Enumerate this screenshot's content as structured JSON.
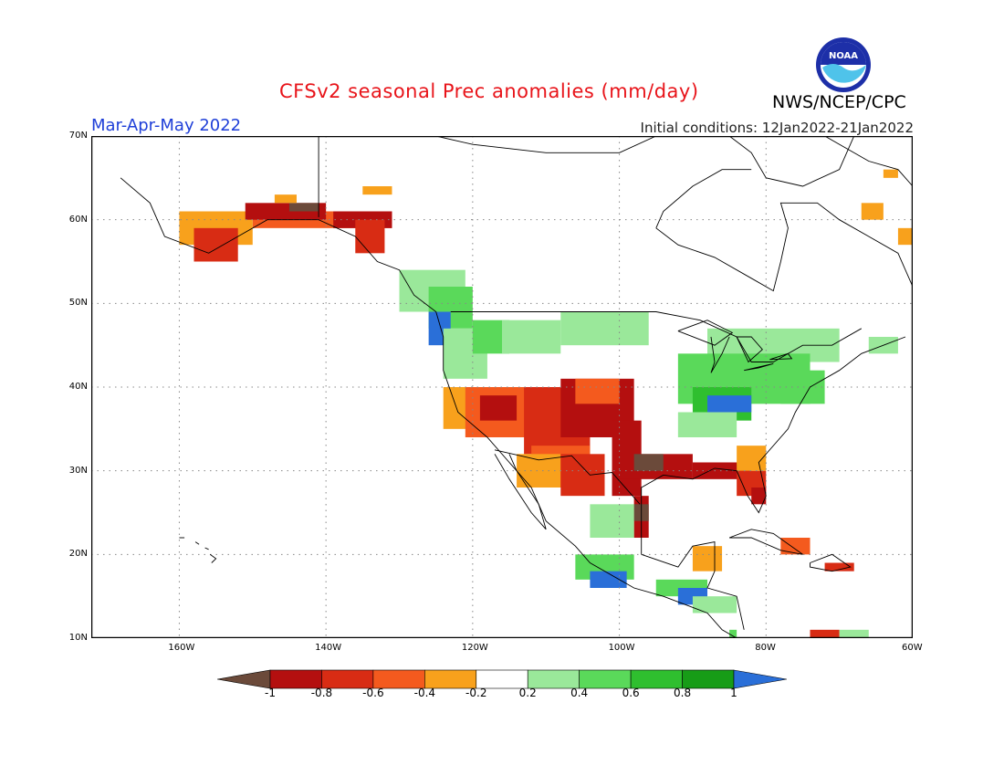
{
  "header": {
    "title": "CFSv2 seasonal Prec anomalies (mm/day)",
    "agency": "NWS/NCEP/CPC",
    "logo_text": "NOAA",
    "period": "Mar-Apr-May 2022",
    "initial_conditions": "Initial conditions: 12Jan2022-21Jan2022"
  },
  "colors": {
    "title": "#e8141a",
    "period": "#1f3fd8",
    "dry_extreme": "#6b4a3a",
    "dry_high": "#b40f0f",
    "dry_mid_high": "#d82c14",
    "dry_mid": "#f45a1e",
    "dry_low": "#f8a11c",
    "neutral": "#ffffff",
    "wet_low": "#9ae89a",
    "wet_mid": "#5ad95a",
    "wet_mid_high": "#2fbf2f",
    "wet_high": "#179c17",
    "wet_extreme": "#2a6fd8"
  },
  "map": {
    "lat_labels": [
      "70N",
      "60N",
      "50N",
      "40N",
      "30N",
      "20N",
      "10N"
    ],
    "lon_labels": [
      "160W",
      "140W",
      "120W",
      "100W",
      "80W",
      "60W"
    ],
    "lat_range": [
      10,
      70
    ],
    "lon_range": [
      -172,
      -60
    ]
  },
  "colorbar": {
    "labels": [
      "-1",
      "-0.8",
      "-0.6",
      "-0.4",
      "-0.2",
      "0.2",
      "0.4",
      "0.6",
      "0.8",
      "1"
    ],
    "bin_colors": [
      "#6b4a3a",
      "#b40f0f",
      "#d82c14",
      "#f45a1e",
      "#f8a11c",
      "#ffffff",
      "#9ae89a",
      "#5ad95a",
      "#2fbf2f",
      "#179c17",
      "#2a6fd8"
    ]
  }
}
